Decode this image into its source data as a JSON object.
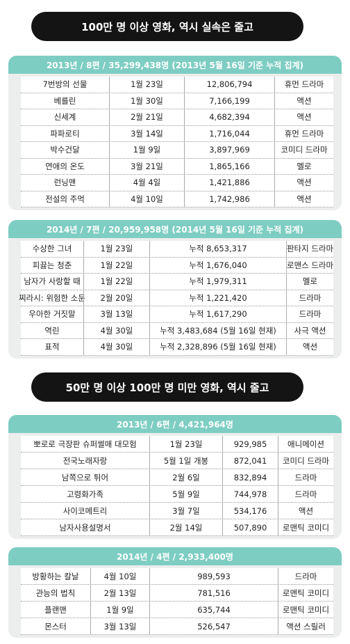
{
  "banners": [
    "100만 명 이상 영화, 역시 실속은 줄고",
    "50만 명 이상 100만 명 미만 영화, 역시 줄고"
  ],
  "sections": [
    {
      "header": "2013년 / 8편 / 35,299,438명 (2013년 5월 16일 기준 누적 집계)",
      "rows": [
        [
          "7번방의 선물",
          "1월 23일",
          "12,806,794",
          "휴먼 드라마"
        ],
        [
          "베를린",
          "1월 30일",
          "7,166,199",
          "액션"
        ],
        [
          "신세계",
          "2월 21일",
          "4,682,394",
          "액션"
        ],
        [
          "파파로티",
          "3월 14일",
          "1,716,044",
          "휴먼 드라마"
        ],
        [
          "박수건달",
          "1월 9일",
          "3,897,969",
          "코미디 드라마"
        ],
        [
          "연애의 온도",
          "3월 21일",
          "1,865,166",
          "멜로"
        ],
        [
          "런닝맨",
          "4월 4일",
          "1,421,886",
          "액션"
        ],
        [
          "전설의 주먹",
          "4월 10일",
          "1,742,986",
          "액션"
        ]
      ]
    },
    {
      "header": "2014년 / 7편 / 20,959,958명 (2014년 5월 16일 기준 누적 집계)",
      "rows": [
        [
          "수상한 그녀",
          "1월 23일",
          "누적 8,653,317",
          "판타지 드라마"
        ],
        [
          "피끓는 청춘",
          "1월 22일",
          "누적 1,676,040",
          "로맨스 드라마"
        ],
        [
          "남자가 사랑할 때",
          "1월 22일",
          "누적 1,979,311",
          "멜로"
        ],
        [
          "찌라시: 위험한 소문",
          "2월 20일",
          "누적 1,221,420",
          "드라마"
        ],
        [
          "우아한 거짓말",
          "3월 13일",
          "누적 1,617,290",
          "드라마"
        ],
        [
          "역린",
          "4월 30일",
          "누적 3,483,684 (5월 16일 현재)",
          "사극 액션"
        ],
        [
          "표적",
          "4월 30일",
          "누적 2,328,896 (5월 16일 현재)",
          "액션"
        ]
      ]
    },
    {
      "header": "2013년 / 6편 / 4,421,964명",
      "rows": [
        [
          "뽀로로 극장판 슈퍼썰매 대모험",
          "1월 23일",
          "929,985",
          "애니메이션"
        ],
        [
          "전국노래자랑",
          "5월 1일 개봉",
          "872,041",
          "코미디 드라마"
        ],
        [
          "남쪽으로 튀어",
          "2월 6일",
          "832,894",
          "드라마"
        ],
        [
          "고령화가족",
          "5월 9일",
          "744,978",
          "드라마"
        ],
        [
          "사이코메트리",
          "3월 7일",
          "534,176",
          "액션"
        ],
        [
          "남자사용설명서",
          "2월 14일",
          "507,890",
          "로맨틱 코미디"
        ]
      ]
    },
    {
      "header": "2014년 / 4편 / 2,933,400명",
      "rows": [
        [
          "방황하는 칼날",
          "4월 10일",
          "989,593",
          "드라마"
        ],
        [
          "관능의 법칙",
          "2월 13일",
          "781,516",
          "로맨틱 코미디"
        ],
        [
          "플랜맨",
          "1월 9일",
          "635,744",
          "로맨틱 코미디"
        ],
        [
          "몬스터",
          "3월 13일",
          "526,547",
          "액션 스릴러"
        ]
      ]
    }
  ]
}
